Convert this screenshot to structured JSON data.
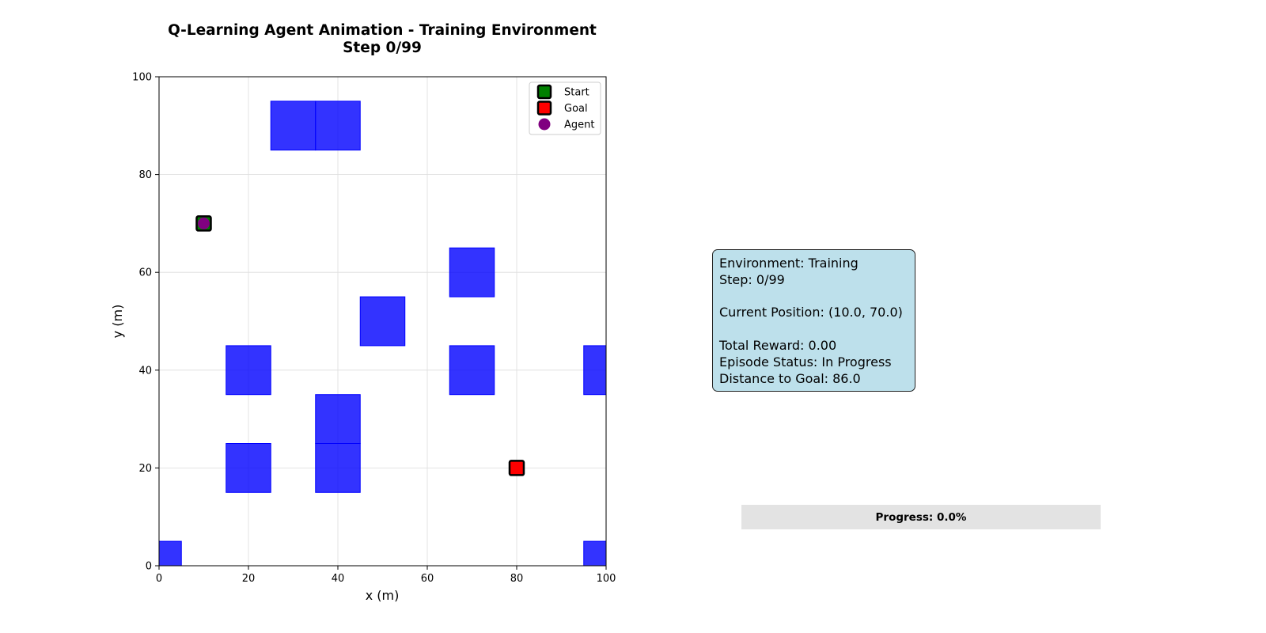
{
  "chart_data": {
    "type": "scatter",
    "title": "Q-Learning Agent Animation - Training Environment",
    "subtitle": "Step 0/99",
    "xlabel": "x (m)",
    "ylabel": "y (m)",
    "xlim": [
      0,
      100
    ],
    "ylim": [
      0,
      100
    ],
    "xticks": [
      0,
      20,
      40,
      60,
      80,
      100
    ],
    "yticks": [
      0,
      20,
      40,
      60,
      80,
      100
    ],
    "grid": true,
    "legend_position": "top-right",
    "legend": [
      {
        "label": "Start",
        "marker": "square",
        "color": "#008000"
      },
      {
        "label": "Goal",
        "marker": "square",
        "color": "#ff0000"
      },
      {
        "label": "Agent",
        "marker": "circle",
        "color": "#800080"
      }
    ],
    "obstacle_color": "#0000ff",
    "obstacles": [
      {
        "x": 25,
        "y": 85,
        "w": 10,
        "h": 10
      },
      {
        "x": 35,
        "y": 85,
        "w": 10,
        "h": 10
      },
      {
        "x": 65,
        "y": 55,
        "w": 10,
        "h": 10
      },
      {
        "x": 45,
        "y": 45,
        "w": 10,
        "h": 10
      },
      {
        "x": 15,
        "y": 35,
        "w": 10,
        "h": 10
      },
      {
        "x": 65,
        "y": 35,
        "w": 10,
        "h": 10
      },
      {
        "x": 95,
        "y": 35,
        "w": 10,
        "h": 10
      },
      {
        "x": 35,
        "y": 25,
        "w": 10,
        "h": 10
      },
      {
        "x": 15,
        "y": 15,
        "w": 10,
        "h": 10
      },
      {
        "x": 35,
        "y": 15,
        "w": 10,
        "h": 10
      },
      {
        "x": 0,
        "y": 0,
        "w": 5,
        "h": 5
      },
      {
        "x": 95,
        "y": 0,
        "w": 10,
        "h": 5
      }
    ],
    "start": {
      "x": 10,
      "y": 70
    },
    "goal": {
      "x": 80,
      "y": 20
    },
    "agent": {
      "x": 10,
      "y": 70
    }
  },
  "info_panel": {
    "lines": [
      "Environment: Training",
      "Step: 0/99",
      "",
      "Current Position: (10.0, 70.0)",
      "",
      "Total Reward: 0.00",
      "Episode Status: In Progress",
      "Distance to Goal: 86.0"
    ]
  },
  "progress": {
    "label": "Progress: 0.0%",
    "value_percent": 0.0,
    "fill_color": "#4caf50",
    "track_color": "#e3e3e3"
  }
}
